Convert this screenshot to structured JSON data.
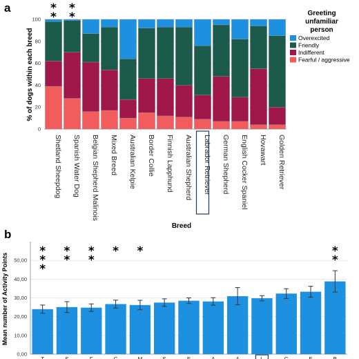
{
  "chart_data": [
    {
      "panel": "a",
      "type": "bar",
      "stacked": true,
      "categories": [
        "Shetland Sheepdog",
        "Spanish Water Dog",
        "Belgian Shepherd Malinois",
        "Mixed Breed",
        "Australian Kelpie",
        "Border Collie",
        "Finnish Lapphund",
        "Australian Shepherd",
        "Labrador Retriever",
        "German Shepherd",
        "English Cocker Spaniel",
        "Hovawart",
        "Golden Retriever"
      ],
      "series": [
        {
          "name": "Fearful / aggressive",
          "color": "#f25c5c",
          "values": [
            39,
            28,
            16,
            17,
            10,
            15,
            12,
            11,
            9,
            7,
            7,
            4,
            4
          ]
        },
        {
          "name": "Indifferent",
          "color": "#a0174a",
          "values": [
            23,
            42,
            45,
            37,
            17,
            31,
            34,
            29,
            22,
            41,
            22,
            51,
            16
          ]
        },
        {
          "name": "Friendly",
          "color": "#1c5b4c",
          "values": [
            36,
            29,
            26,
            39,
            37,
            46,
            47,
            53,
            45,
            47,
            53,
            39,
            65
          ]
        },
        {
          "name": "Overexcited",
          "color": "#1e90e0",
          "values": [
            2,
            1,
            13,
            7,
            36,
            8,
            7,
            7,
            24,
            5,
            18,
            6,
            15
          ]
        }
      ],
      "ylabel": "% of dogs within each breed",
      "xlabel": "",
      "ylim": [
        0,
        100
      ],
      "yticks": [
        "0",
        "20",
        "40",
        "60",
        "80",
        "100"
      ],
      "legend": {
        "title": "Greeting unfamiliar person",
        "title_lines": [
          "Greeting",
          "unfamiliar",
          "person"
        ],
        "placement": "right"
      },
      "significance": [
        "**",
        "**",
        "",
        "",
        "",
        "",
        "",
        "",
        "",
        "",
        "",
        "",
        ""
      ],
      "highlight": "Labrador Retriever"
    },
    {
      "panel": "b",
      "type": "bar",
      "categories": [
        "T",
        "S",
        "F",
        "C",
        "M",
        "S",
        "E",
        "A",
        "A",
        "L",
        "G",
        "E",
        "B"
      ],
      "values": [
        24.0,
        25.1,
        24.8,
        26.7,
        26.2,
        27.5,
        28.5,
        28.1,
        30.9,
        29.8,
        32.3,
        33.3,
        38.8
      ],
      "error": [
        2.2,
        2.9,
        2.0,
        2.1,
        2.5,
        2.0,
        1.5,
        2.0,
        4.6,
        1.4,
        2.6,
        2.9,
        5.7
      ],
      "xlabel": "Breed",
      "ylabel": "Mean number of Activity Points",
      "ylim": [
        0,
        60
      ],
      "yticks": [
        "0,00",
        "10,00",
        "20,00",
        "30,00",
        "40,00",
        "50,00"
      ],
      "significance": [
        "***",
        "**",
        "**",
        "*",
        "*",
        "",
        "",
        "",
        "",
        "",
        "",
        "",
        "**"
      ],
      "color": "#1e90e0",
      "highlight_index": 9
    }
  ]
}
